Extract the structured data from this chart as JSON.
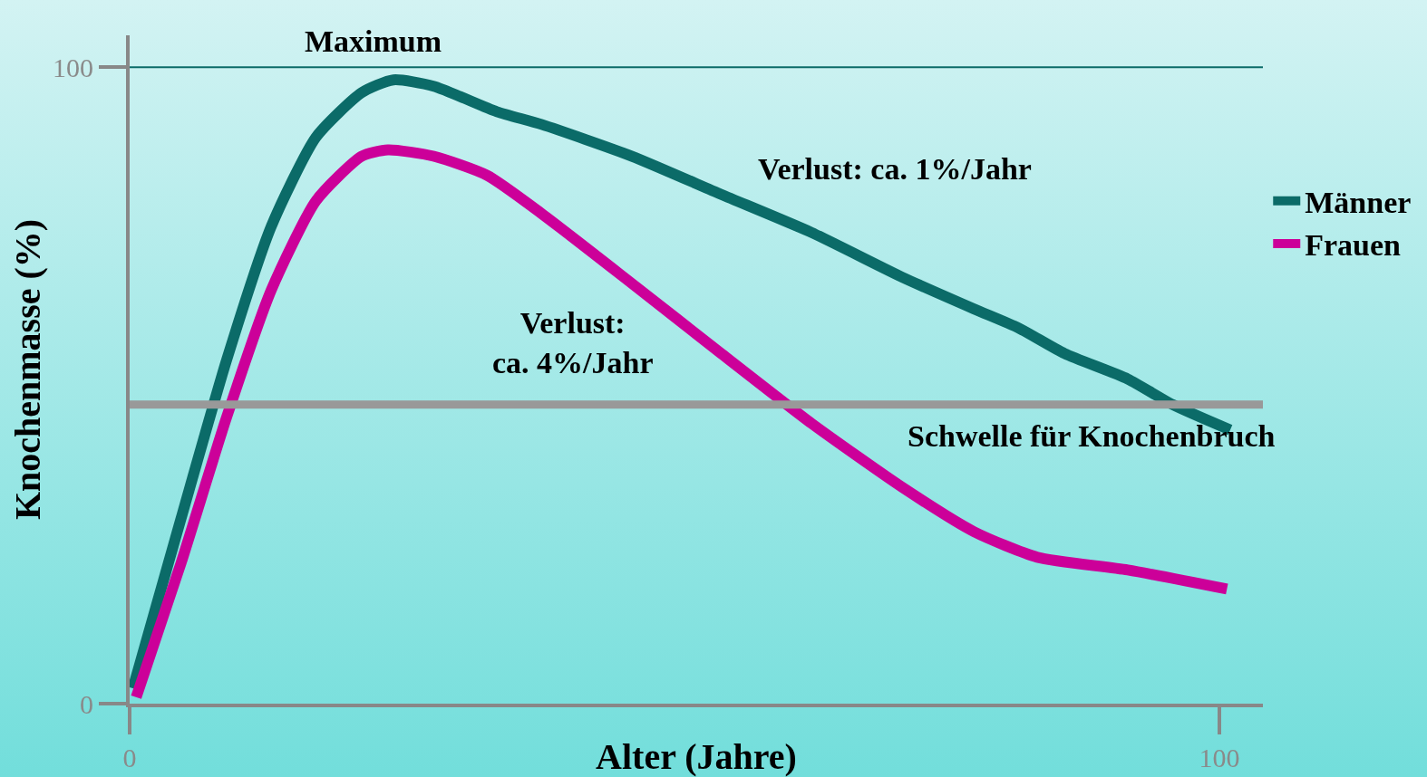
{
  "chart_data": {
    "type": "line",
    "xlabel": "Alter (Jahre)",
    "ylabel": "Knochenmasse (%)",
    "xlim": [
      0,
      104
    ],
    "xticks": [
      0,
      100
    ],
    "ylim": [
      0,
      105
    ],
    "yticks": [
      0,
      100
    ],
    "grid": false,
    "legend": "right",
    "marker": "none",
    "line_style": "solid",
    "series": [
      {
        "name": "Männer",
        "color": "#0b6b68",
        "x": [
          0.3,
          4.7,
          8.9,
          13,
          17.1,
          21.3,
          24.2,
          27.9,
          33.7,
          37.8,
          46.1,
          54.3,
          62.6,
          70.9,
          77.5,
          81.6,
          85.8,
          91.6,
          95.7,
          101
        ],
        "values": [
          2.4,
          29,
          54,
          75,
          89,
          96,
          98,
          97,
          93,
          91,
          86,
          80,
          74,
          67,
          62,
          59,
          55,
          51,
          47,
          43
        ]
      },
      {
        "name": "Frauen",
        "color": "#cc0099",
        "x": [
          0.6,
          4.7,
          8.9,
          13,
          17.1,
          21.3,
          23.7,
          27.9,
          32.8,
          37.8,
          46.1,
          54.3,
          62.6,
          70.9,
          77.5,
          83.3,
          91.6,
          100.7
        ],
        "values": [
          1,
          22,
          45,
          65,
          79,
          86,
          87,
          86,
          83,
          77,
          66,
          55,
          44,
          34,
          27,
          23,
          21,
          18
        ]
      }
    ],
    "ref_lines": [
      {
        "axis": "y",
        "value": 100,
        "label": "Maximum",
        "color": "#0b6b68"
      },
      {
        "axis": "y",
        "value": 47,
        "label": "Schwelle für Knochenbruch",
        "color": "#999999"
      }
    ],
    "annotations": [
      "Verlust: ca. 1%/Jahr",
      "Verlust:\nca. 4%/Jahr"
    ]
  }
}
